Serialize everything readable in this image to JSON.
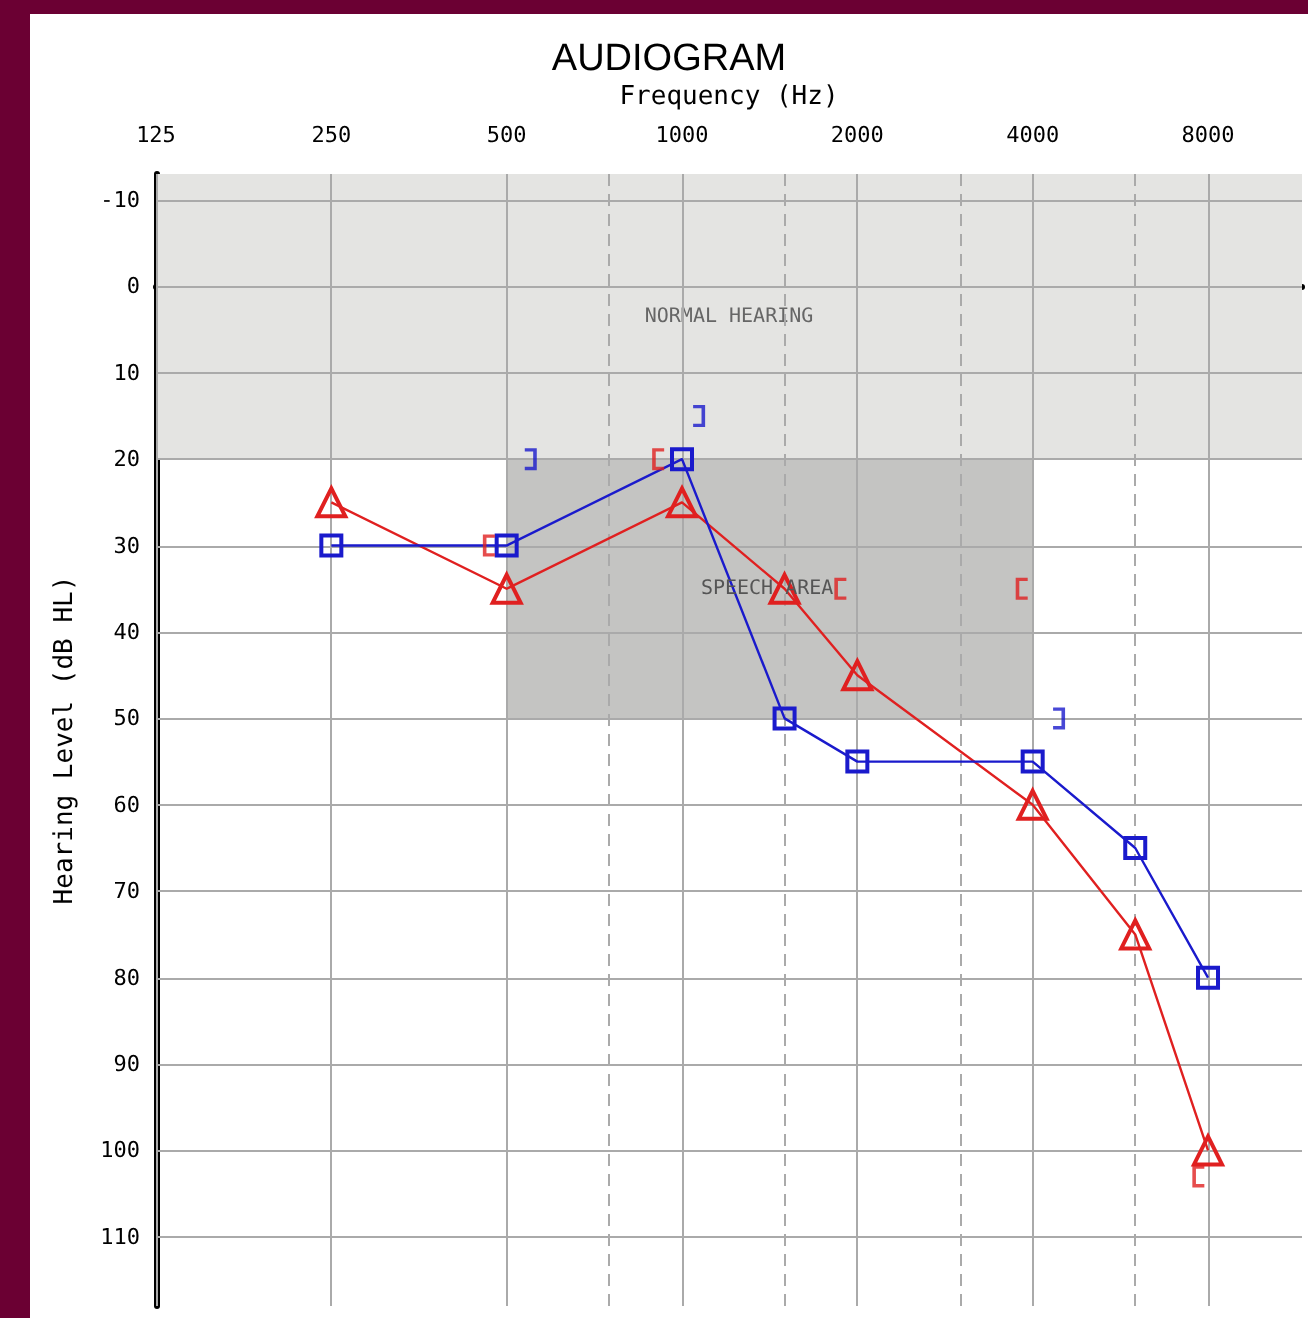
{
  "chart_data": {
    "type": "line",
    "title": "AUDIOGRAM",
    "xlabel": "Frequency (Hz)",
    "ylabel": "Hearing Level (dB HL)",
    "x": [
      250,
      500,
      1000,
      1500,
      2000,
      4000,
      6000,
      8000
    ],
    "series": [
      {
        "color": "#e02020",
        "marker": "triangle",
        "values": [
          25,
          35,
          25,
          35,
          45,
          60,
          75,
          100
        ]
      },
      {
        "color": "#1a1acc",
        "marker": "square",
        "values": [
          30,
          30,
          20,
          50,
          55,
          55,
          65,
          80
        ]
      },
      {
        "type": "scatter",
        "color": "#e02020",
        "x": [
          466,
          910,
          1870,
          3830,
          7700
        ],
        "values": [
          30,
          20,
          35,
          35,
          103
        ]
      },
      {
        "type": "scatter",
        "color": "#1a1acc",
        "x": [
          550,
          1070,
          4440
        ],
        "values": [
          20,
          15,
          50
        ]
      },
      {
        "type": "line",
        "color": "#c4c4c2",
        "x": [
          500,
          4000
        ],
        "values": [
          null,
          null
        ],
        "lower": [
          20,
          20
        ],
        "upper": [
          50,
          50
        ]
      }
    ],
    "log": "x",
    "xlim": [
      125,
      11600
    ],
    "xticks": [
      125,
      250,
      500,
      1000,
      2000,
      4000,
      8000,
      {
        "value": 750,
        "label": null
      },
      {
        "value": 1500,
        "label": null
      },
      {
        "value": 3000,
        "label": null
      },
      {
        "value": 6000,
        "label": null
      }
    ],
    "ylim": [
      118,
      -13
    ],
    "yticks": [
      -10,
      0,
      10,
      20,
      30,
      40,
      50,
      60,
      70,
      80,
      90,
      100,
      110
    ],
    "bands": [
      {
        "axis": "y",
        "from": -13,
        "to": 20,
        "label": "NORMAL HEARING",
        "color": "#e4e4e2"
      }
    ],
    "annotations": [
      {
        "text": "SPEECH AREA",
        "x": 1400,
        "y": 35
      }
    ],
    "grid": true
  }
}
